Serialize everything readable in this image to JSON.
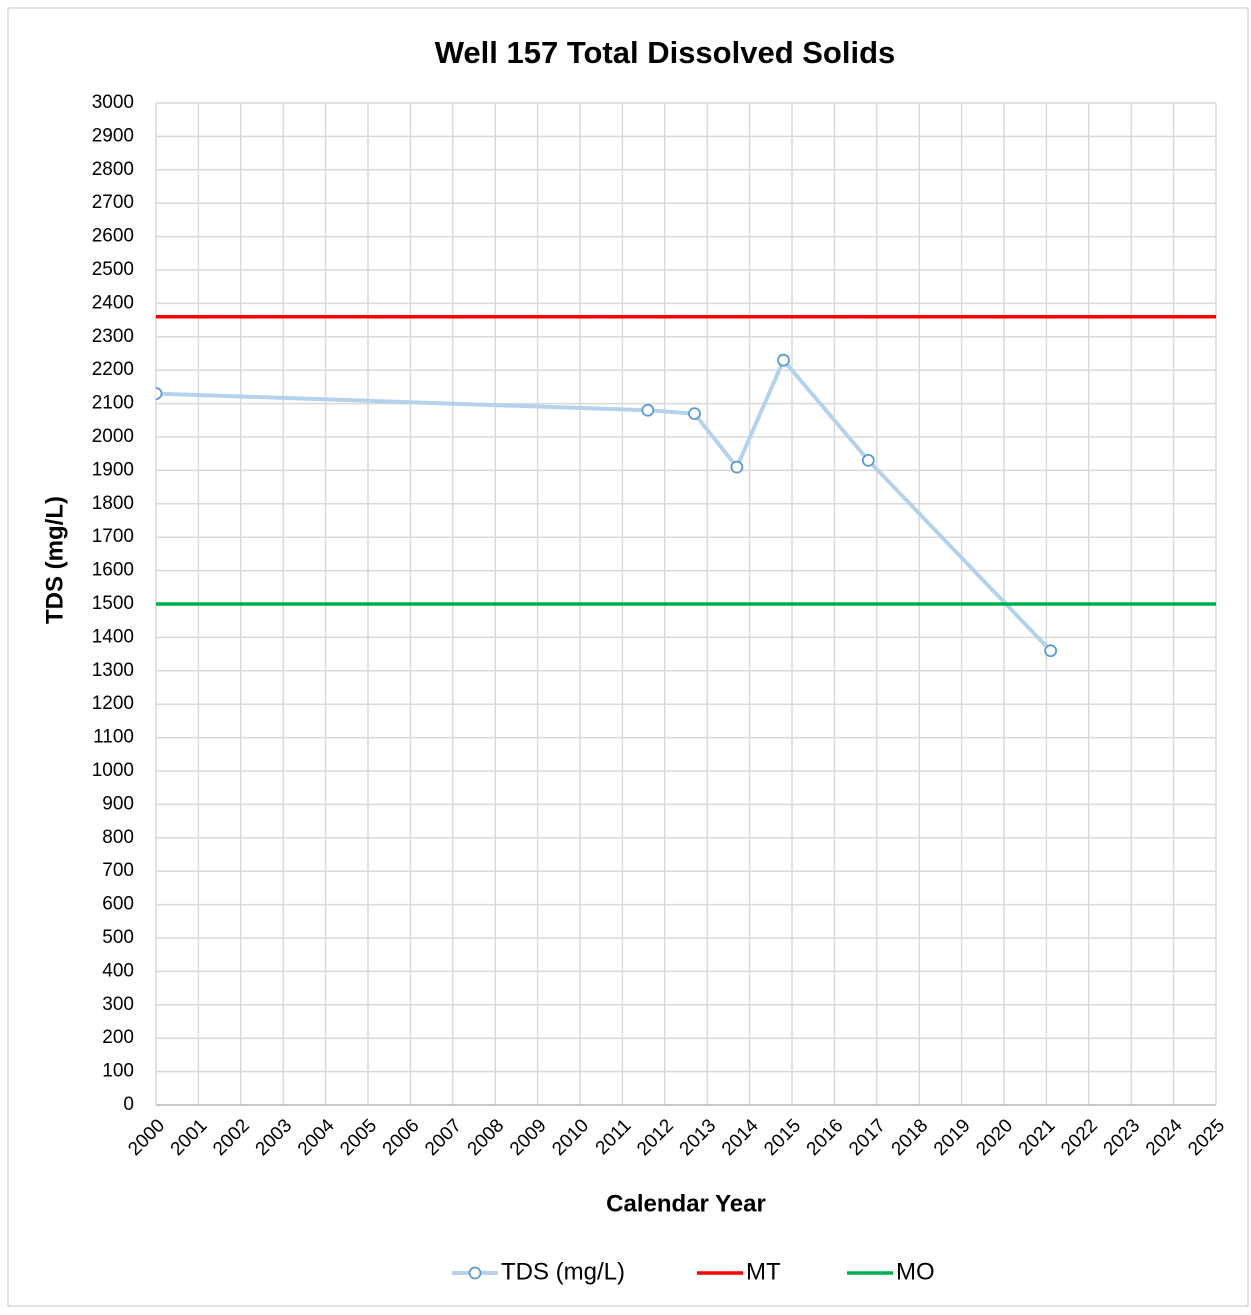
{
  "chart_data": {
    "type": "line",
    "title": "Well 157 Total Dissolved Solids",
    "xlabel": "Calendar Year",
    "ylabel": "TDS (mg/L)",
    "xlim": [
      2000,
      2025
    ],
    "xticks": [
      2000,
      2001,
      2002,
      2003,
      2004,
      2005,
      2006,
      2007,
      2008,
      2009,
      2010,
      2011,
      2012,
      2013,
      2014,
      2015,
      2016,
      2017,
      2018,
      2019,
      2020,
      2021,
      2022,
      2023,
      2024,
      2025
    ],
    "ylim": [
      0,
      3000
    ],
    "yticks": [
      0,
      100,
      200,
      300,
      400,
      500,
      600,
      700,
      800,
      900,
      1000,
      1100,
      1200,
      1300,
      1400,
      1500,
      1600,
      1700,
      1800,
      1900,
      2000,
      2100,
      2200,
      2300,
      2400,
      2500,
      2600,
      2700,
      2800,
      2900,
      3000
    ],
    "grid": true,
    "legend": "bottom",
    "series": [
      {
        "name": "TDS (mg/L)",
        "color": "#b4d2ec",
        "marker_color": "#5b9bd5",
        "x": [
          2000,
          2011.6,
          2012.7,
          2013.7,
          2014.8,
          2016.8,
          2021.1
        ],
        "values": [
          2130,
          2080,
          2070,
          1910,
          2230,
          1930,
          1360
        ]
      },
      {
        "name": "MT",
        "color": "#ff0000",
        "value": 2360
      },
      {
        "name": "MO",
        "color": "#00b050",
        "value": 1500
      }
    ]
  }
}
